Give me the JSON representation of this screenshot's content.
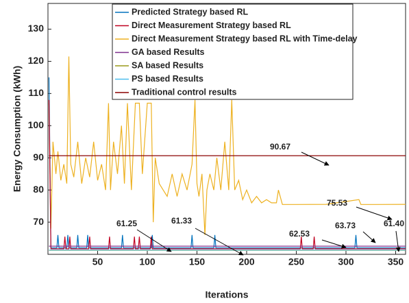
{
  "chart_data": {
    "type": "line",
    "x_label": "Iterations",
    "y_label": "Energy Consumption (kWh)",
    "xlim": [
      0,
      360
    ],
    "ylim": [
      60,
      138
    ],
    "xticks": [
      50,
      100,
      150,
      200,
      250,
      300,
      350
    ],
    "yticks": [
      70,
      80,
      90,
      100,
      110,
      120,
      130
    ],
    "series": [
      {
        "name": "Predicted Strategy based RL",
        "color": "#0072bd",
        "x": [
          1,
          3,
          9,
          10,
          11,
          19,
          20,
          21,
          29,
          30,
          31,
          39,
          40,
          41,
          74,
          75,
          76,
          104,
          105,
          106,
          144,
          145,
          146,
          167,
          168,
          169,
          309,
          310,
          311,
          360
        ],
        "values": [
          115,
          62,
          62,
          66,
          62,
          62,
          66,
          62,
          62,
          66,
          62,
          62,
          66,
          62,
          62,
          66,
          62,
          62,
          66,
          62,
          62,
          66,
          62,
          62,
          66,
          62,
          62,
          66,
          62,
          62
        ]
      },
      {
        "name": "Direct Measurement Strategy based RL",
        "color": "#c00020",
        "x": [
          1,
          3,
          16,
          17,
          18,
          21,
          22,
          23,
          41,
          42,
          43,
          61,
          62,
          63,
          86,
          87,
          88,
          91,
          92,
          93,
          103,
          104,
          105,
          254,
          255,
          256,
          267,
          268,
          269,
          360
        ],
        "values": [
          108,
          61.7,
          61.7,
          65.5,
          61.7,
          61.7,
          65.5,
          61.7,
          61.7,
          65.5,
          61.7,
          61.7,
          65.5,
          61.7,
          61.7,
          65.5,
          61.7,
          61.7,
          65.5,
          61.7,
          61.7,
          65.5,
          61.7,
          61.7,
          65.5,
          61.7,
          61.7,
          65.5,
          61.7,
          61.7
        ]
      },
      {
        "name": "Direct Measurement Strategy based RL with Time-delay",
        "color": "#edb120",
        "x": [
          1,
          3,
          5,
          8,
          10,
          13,
          16,
          19,
          21,
          23,
          26,
          30,
          34,
          38,
          42,
          46,
          50,
          54,
          58,
          61,
          63,
          66,
          70,
          74,
          77,
          80,
          84,
          88,
          92,
          95,
          100,
          104,
          106,
          108,
          112,
          116,
          120,
          125,
          130,
          135,
          140,
          145,
          148,
          150,
          152,
          155,
          158,
          160,
          163,
          167,
          170,
          174,
          178,
          182,
          185,
          188,
          192,
          196,
          200,
          205,
          210,
          215,
          220,
          225,
          230,
          232,
          236,
          250,
          280,
          313,
          315,
          330,
          360
        ],
        "values": [
          107,
          68,
          95,
          85,
          92,
          83,
          88,
          82,
          121.5,
          88,
          84,
          95,
          82,
          90,
          84,
          95,
          83,
          88,
          80,
          107,
          80,
          95,
          85,
          100,
          82,
          107,
          80,
          107,
          107,
          85,
          107,
          107,
          70,
          90,
          82,
          80,
          78,
          85,
          78,
          85,
          80,
          88,
          108,
          82,
          78,
          85,
          66,
          80,
          85,
          80,
          90,
          80,
          95,
          80,
          108,
          80,
          83,
          77,
          80,
          76,
          78,
          76,
          77,
          76,
          76,
          80,
          75.5,
          75.5,
          75.53,
          77,
          75.5,
          75.5,
          75.53
        ]
      },
      {
        "name": "GA based Results",
        "color": "#7e2f8e",
        "x": [
          1,
          360
        ],
        "values": [
          62.53,
          62.53
        ]
      },
      {
        "name": "SA based Results",
        "color": "#9a9a1a",
        "x": [
          1,
          360
        ],
        "values": [
          61.25,
          61.25
        ]
      },
      {
        "name": "PS based Results",
        "color": "#4dbeee",
        "x": [
          1,
          360
        ],
        "values": [
          61.33,
          61.33
        ]
      },
      {
        "name": "Traditional control results",
        "color": "#8b0000",
        "x": [
          1,
          360
        ],
        "values": [
          90.67,
          90.67
        ]
      }
    ],
    "annotations": [
      "90.67",
      "75.53",
      "61.25",
      "61.33",
      "62.53",
      "63.73",
      "61.40"
    ]
  }
}
